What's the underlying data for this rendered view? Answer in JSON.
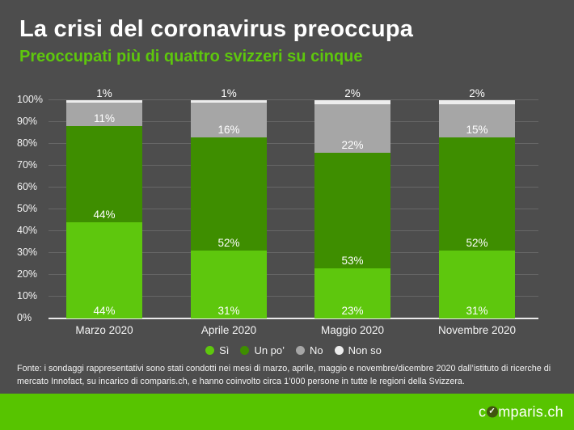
{
  "colors": {
    "background": "#4d4d4d",
    "accent_green": "#5ec70d",
    "banner_green": "#57c400",
    "gridline": "#7d7d7d",
    "baseline": "#e9e9e9"
  },
  "header": {
    "title": "La crisi del coronavirus preoccupa",
    "subtitle": "Preoccupati più di quattro svizzeri su cinque"
  },
  "chart_data": {
    "type": "bar",
    "stacked": true,
    "title": "",
    "xlabel": "",
    "ylabel": "",
    "ylim": [
      0,
      100
    ],
    "yticks": [
      "0%",
      "10%",
      "20%",
      "30%",
      "40%",
      "50%",
      "60%",
      "70%",
      "80%",
      "90%",
      "100%"
    ],
    "grid": true,
    "legend_position": "bottom",
    "categories": [
      "Marzo 2020",
      "Aprile 2020",
      "Maggio 2020",
      "Novembre 2020"
    ],
    "series": [
      {
        "name": "Sì",
        "color": "#5ec70d",
        "values": [
          44,
          31,
          23,
          31
        ]
      },
      {
        "name": "Un po’",
        "color": "#3e8e00",
        "values": [
          44,
          52,
          53,
          52
        ]
      },
      {
        "name": "No",
        "color": "#a6a6a6",
        "values": [
          11,
          16,
          22,
          15
        ]
      },
      {
        "name": "Non so",
        "color": "#ededed",
        "values": [
          1,
          1,
          2,
          2
        ]
      }
    ],
    "value_suffix": "%"
  },
  "footer": {
    "source": "Fonte: i sondaggi rappresentativi sono stati condotti nei mesi di marzo, aprile, maggio e novembre/dicembre 2020 dall’istituto di ricerche di mercato Innofact, su incarico di comparis.ch, e hanno coinvolto circa 1’000 persone in tutte le regioni della Svizzera."
  },
  "banner": {
    "logo_pre": "c",
    "logo_check": "✓",
    "logo_post": "mparis.ch"
  }
}
